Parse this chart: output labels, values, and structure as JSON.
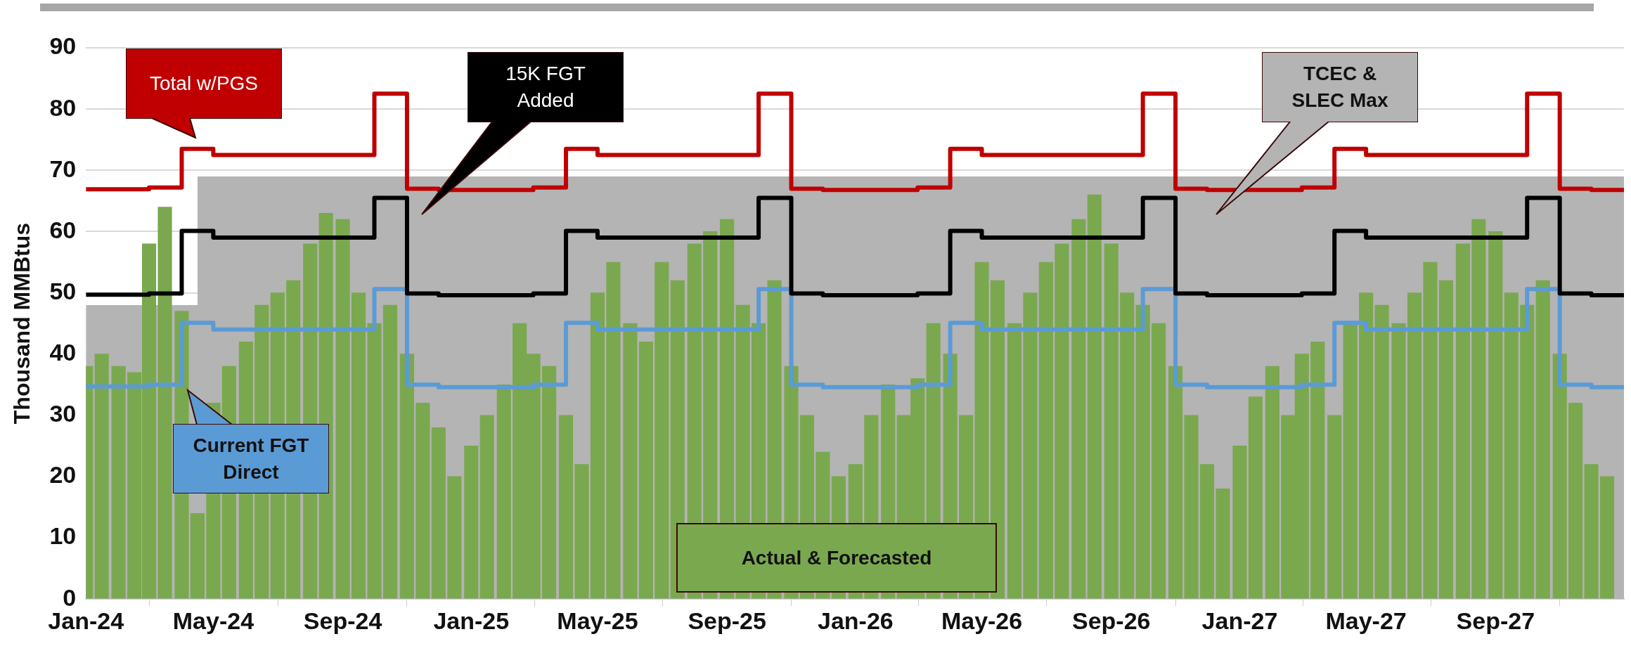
{
  "chart_data": {
    "type": "step",
    "ylabel": "Thousand MMBtus",
    "xlim": [
      "2024-01-01",
      "2028-01-01"
    ],
    "xticks": [
      {
        "value": "2024-01-01",
        "label": "Jan-24"
      },
      {
        "value": "2024-05-01",
        "label": "May-24"
      },
      {
        "value": "2024-09-01",
        "label": "Sep-24"
      },
      {
        "value": "2025-01-01",
        "label": "Jan-25"
      },
      {
        "value": "2025-05-01",
        "label": "May-25"
      },
      {
        "value": "2025-09-01",
        "label": "Sep-25"
      },
      {
        "value": "2026-01-01",
        "label": "Jan-26"
      },
      {
        "value": "2026-05-01",
        "label": "May-26"
      },
      {
        "value": "2026-09-01",
        "label": "Sep-26"
      },
      {
        "value": "2027-01-01",
        "label": "Jan-27"
      },
      {
        "value": "2027-05-01",
        "label": "May-27"
      },
      {
        "value": "2027-09-01",
        "label": "Sep-27"
      },
      {
        "value": "2028-01-01",
        "label": null
      }
    ],
    "ylim": [
      0,
      90
    ],
    "yticks": [
      0,
      10,
      20,
      30,
      40,
      50,
      60,
      70,
      80,
      90
    ],
    "grid": "y",
    "marker": "none",
    "series": [
      {
        "type": "area",
        "name": "TCEC & SLEC Max",
        "color": "#b4b4b4",
        "x": [
          "2024-01-01",
          "2024-04-16",
          "2028-01-01"
        ],
        "values": [
          48,
          69,
          69
        ]
      },
      {
        "type": "bar",
        "name": "Actual & Forecasted",
        "color": "#7aa84f",
        "x": [
          "2024-01-01",
          "2024-01-16",
          "2024-02-01",
          "2024-02-16",
          "2024-03-01",
          "2024-03-16",
          "2024-04-01",
          "2024-04-16",
          "2024-05-01",
          "2024-05-16",
          "2024-06-01",
          "2024-06-16",
          "2024-07-01",
          "2024-07-16",
          "2024-08-01",
          "2024-08-16",
          "2024-09-01",
          "2024-09-16",
          "2024-10-01",
          "2024-10-16",
          "2024-11-01",
          "2024-11-16",
          "2024-12-01",
          "2024-12-16",
          "2025-01-01",
          "2025-01-16",
          "2025-02-01",
          "2025-02-16",
          "2025-03-01",
          "2025-03-16",
          "2025-04-01",
          "2025-04-16",
          "2025-05-01",
          "2025-05-16",
          "2025-06-01",
          "2025-06-16",
          "2025-07-01",
          "2025-07-16",
          "2025-08-01",
          "2025-08-16",
          "2025-09-01",
          "2025-09-16",
          "2025-10-01",
          "2025-10-16",
          "2025-11-01",
          "2025-11-16",
          "2025-12-01",
          "2025-12-16",
          "2026-01-01",
          "2026-01-16",
          "2026-02-01",
          "2026-02-16",
          "2026-03-01",
          "2026-03-16",
          "2026-04-01",
          "2026-04-16",
          "2026-05-01",
          "2026-05-16",
          "2026-06-01",
          "2026-06-16",
          "2026-07-01",
          "2026-07-16",
          "2026-08-01",
          "2026-08-16",
          "2026-09-01",
          "2026-09-16",
          "2026-10-01",
          "2026-10-16",
          "2026-11-01",
          "2026-11-16",
          "2026-12-01",
          "2026-12-16",
          "2027-01-01",
          "2027-01-16",
          "2027-02-01",
          "2027-02-16",
          "2027-03-01",
          "2027-03-16",
          "2027-04-01",
          "2027-04-16",
          "2027-05-01",
          "2027-05-16",
          "2027-06-01",
          "2027-06-16",
          "2027-07-01",
          "2027-07-16",
          "2027-08-01",
          "2027-08-16",
          "2027-09-01",
          "2027-09-16",
          "2027-10-01",
          "2027-10-16",
          "2027-11-01",
          "2027-11-16",
          "2027-12-01",
          "2027-12-16"
        ],
        "values": [
          38,
          40,
          38,
          37,
          58,
          64,
          47,
          14,
          32,
          38,
          42,
          48,
          50,
          52,
          58,
          63,
          62,
          50,
          45,
          48,
          40,
          32,
          28,
          20,
          25,
          30,
          35,
          45,
          40,
          38,
          30,
          22,
          50,
          55,
          45,
          42,
          55,
          52,
          58,
          60,
          62,
          48,
          45,
          52,
          38,
          30,
          24,
          20,
          22,
          30,
          35,
          30,
          36,
          45,
          40,
          30,
          55,
          52,
          45,
          50,
          55,
          58,
          62,
          66,
          58,
          50,
          48,
          45,
          38,
          30,
          22,
          18,
          25,
          33,
          38,
          30,
          40,
          42,
          30,
          45,
          50,
          48,
          45,
          50,
          55,
          52,
          58,
          62,
          60,
          50,
          48,
          52,
          40,
          32,
          22,
          20
        ]
      },
      {
        "name": "Current FGT Direct",
        "color": "#5b9bd5",
        "x": [
          "2024-01-01",
          "2024-03-01",
          "2024-04-01",
          "2024-05-01",
          "2024-10-01",
          "2024-11-01",
          "2024-12-01",
          "2025-03-01",
          "2025-04-01",
          "2025-05-01",
          "2025-10-01",
          "2025-11-01",
          "2025-12-01",
          "2026-03-01",
          "2026-04-01",
          "2026-05-01",
          "2026-10-01",
          "2026-11-01",
          "2026-12-01",
          "2027-03-01",
          "2027-04-01",
          "2027-05-01",
          "2027-10-01",
          "2027-11-01",
          "2027-12-01",
          "2028-01-01"
        ],
        "values": [
          34.7,
          35,
          45.1,
          44,
          50.6,
          35,
          34.6,
          35,
          45.1,
          44,
          50.6,
          35,
          34.6,
          35,
          45.1,
          44,
          50.6,
          35,
          34.6,
          35,
          45.1,
          44,
          50.6,
          35,
          34.6,
          34.6
        ]
      },
      {
        "name": "15K FGT Added",
        "color": "#000000",
        "x": [
          "2024-01-01",
          "2024-03-01",
          "2024-04-01",
          "2024-05-01",
          "2024-10-01",
          "2024-11-01",
          "2024-12-01",
          "2025-03-01",
          "2025-04-01",
          "2025-05-01",
          "2025-10-01",
          "2025-11-01",
          "2025-12-01",
          "2026-03-01",
          "2026-04-01",
          "2026-05-01",
          "2026-10-01",
          "2026-11-01",
          "2026-12-01",
          "2027-03-01",
          "2027-04-01",
          "2027-05-01",
          "2027-10-01",
          "2027-11-01",
          "2027-12-01",
          "2028-01-01"
        ],
        "values": [
          49.7,
          49.9,
          60.1,
          59,
          65.5,
          49.9,
          49.6,
          49.9,
          60.1,
          59,
          65.5,
          49.9,
          49.6,
          49.9,
          60.1,
          59,
          65.5,
          49.9,
          49.6,
          49.9,
          60.1,
          59,
          65.5,
          49.9,
          49.6,
          49.6
        ]
      },
      {
        "name": "Total w/PGS",
        "color": "#c00000",
        "x": [
          "2024-01-01",
          "2024-03-01",
          "2024-04-01",
          "2024-05-01",
          "2024-10-01",
          "2024-11-01",
          "2024-12-01",
          "2025-03-01",
          "2025-04-01",
          "2025-05-01",
          "2025-10-01",
          "2025-11-01",
          "2025-12-01",
          "2026-03-01",
          "2026-04-01",
          "2026-05-01",
          "2026-10-01",
          "2026-11-01",
          "2026-12-01",
          "2027-03-01",
          "2027-04-01",
          "2027-05-01",
          "2027-10-01",
          "2027-11-01",
          "2027-12-01",
          "2028-01-01"
        ],
        "values": [
          66.9,
          67.2,
          73.5,
          72.5,
          82.5,
          67,
          66.8,
          67.2,
          73.5,
          72.5,
          82.5,
          67,
          66.8,
          67.2,
          73.5,
          72.5,
          82.5,
          67,
          66.8,
          67.2,
          73.5,
          72.5,
          82.5,
          67,
          66.8,
          66.8
        ]
      }
    ]
  }
}
